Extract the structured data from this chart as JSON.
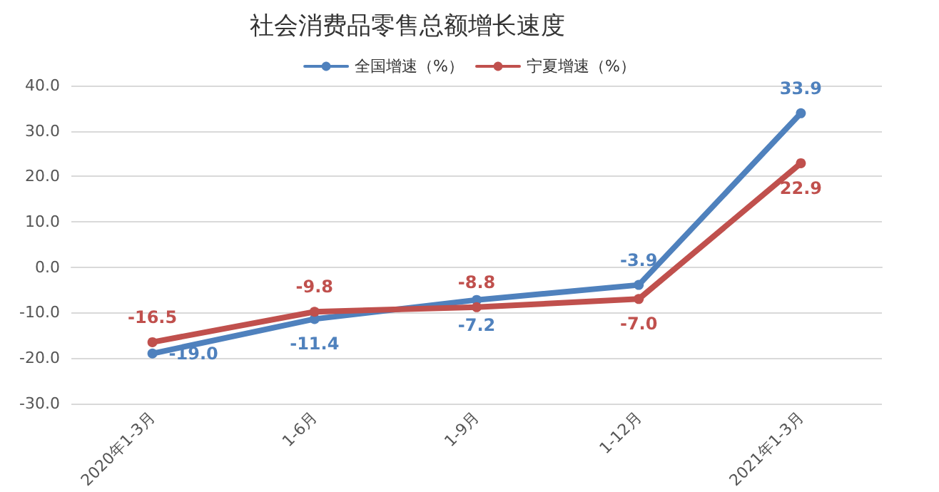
{
  "chart_data": {
    "type": "line",
    "title": "社会消费品零售总额增长速度",
    "categories": [
      "2020年1-3月",
      "1-6月",
      "1-9月",
      "1-12月",
      "2021年1-3月"
    ],
    "series": [
      {
        "name": "全国增速（%）",
        "color": "#4f81bd",
        "values": [
          -19.0,
          -11.4,
          -7.2,
          -3.9,
          33.9
        ],
        "value_labels": [
          "-19.0",
          "-11.4",
          "-7.2",
          "-3.9",
          "33.9"
        ]
      },
      {
        "name": "宁夏增速（%）",
        "color": "#c0504d",
        "values": [
          -16.5,
          -9.8,
          -8.8,
          -7.0,
          22.9
        ],
        "value_labels": [
          "-16.5",
          "-9.8",
          "-8.8",
          "-7.0",
          "22.9"
        ]
      }
    ],
    "ylim": [
      -30,
      40
    ],
    "yticks": [
      {
        "value": -30,
        "label": "-30.0"
      },
      {
        "value": -20,
        "label": "-20.0"
      },
      {
        "value": -10,
        "label": "-10.0"
      },
      {
        "value": 0,
        "label": "0.0"
      },
      {
        "value": 10,
        "label": "10.0"
      },
      {
        "value": 20,
        "label": "20.0"
      },
      {
        "value": 30,
        "label": "30.0"
      },
      {
        "value": 40,
        "label": "40.0"
      }
    ],
    "grid": "y",
    "legend": "top",
    "marker": "circle",
    "line_style": "solid"
  }
}
